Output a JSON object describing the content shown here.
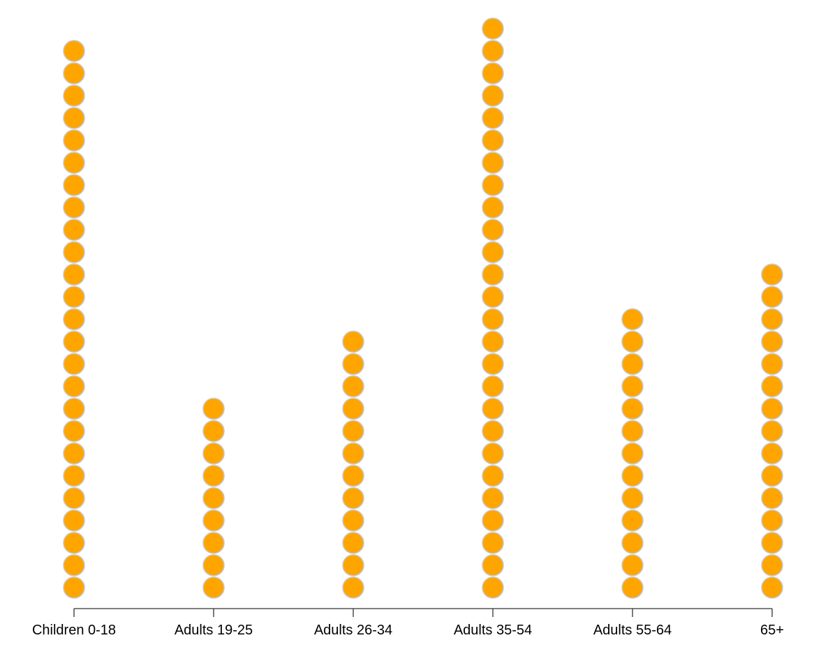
{
  "chart_data": {
    "type": "dot-stack",
    "title": "",
    "xlabel": "",
    "ylabel": "",
    "categories": [
      "Children 0-18",
      "Adults 19-25",
      "Adults 26-34",
      "Adults 35-54",
      "Adults 55-64",
      "65+"
    ],
    "values": [
      25,
      9,
      12,
      26,
      13,
      15
    ],
    "dot_color": "#FFA500",
    "dot_stroke": "#C8C8C8",
    "axis_color": "#333333",
    "grid": false,
    "legend": "none"
  }
}
